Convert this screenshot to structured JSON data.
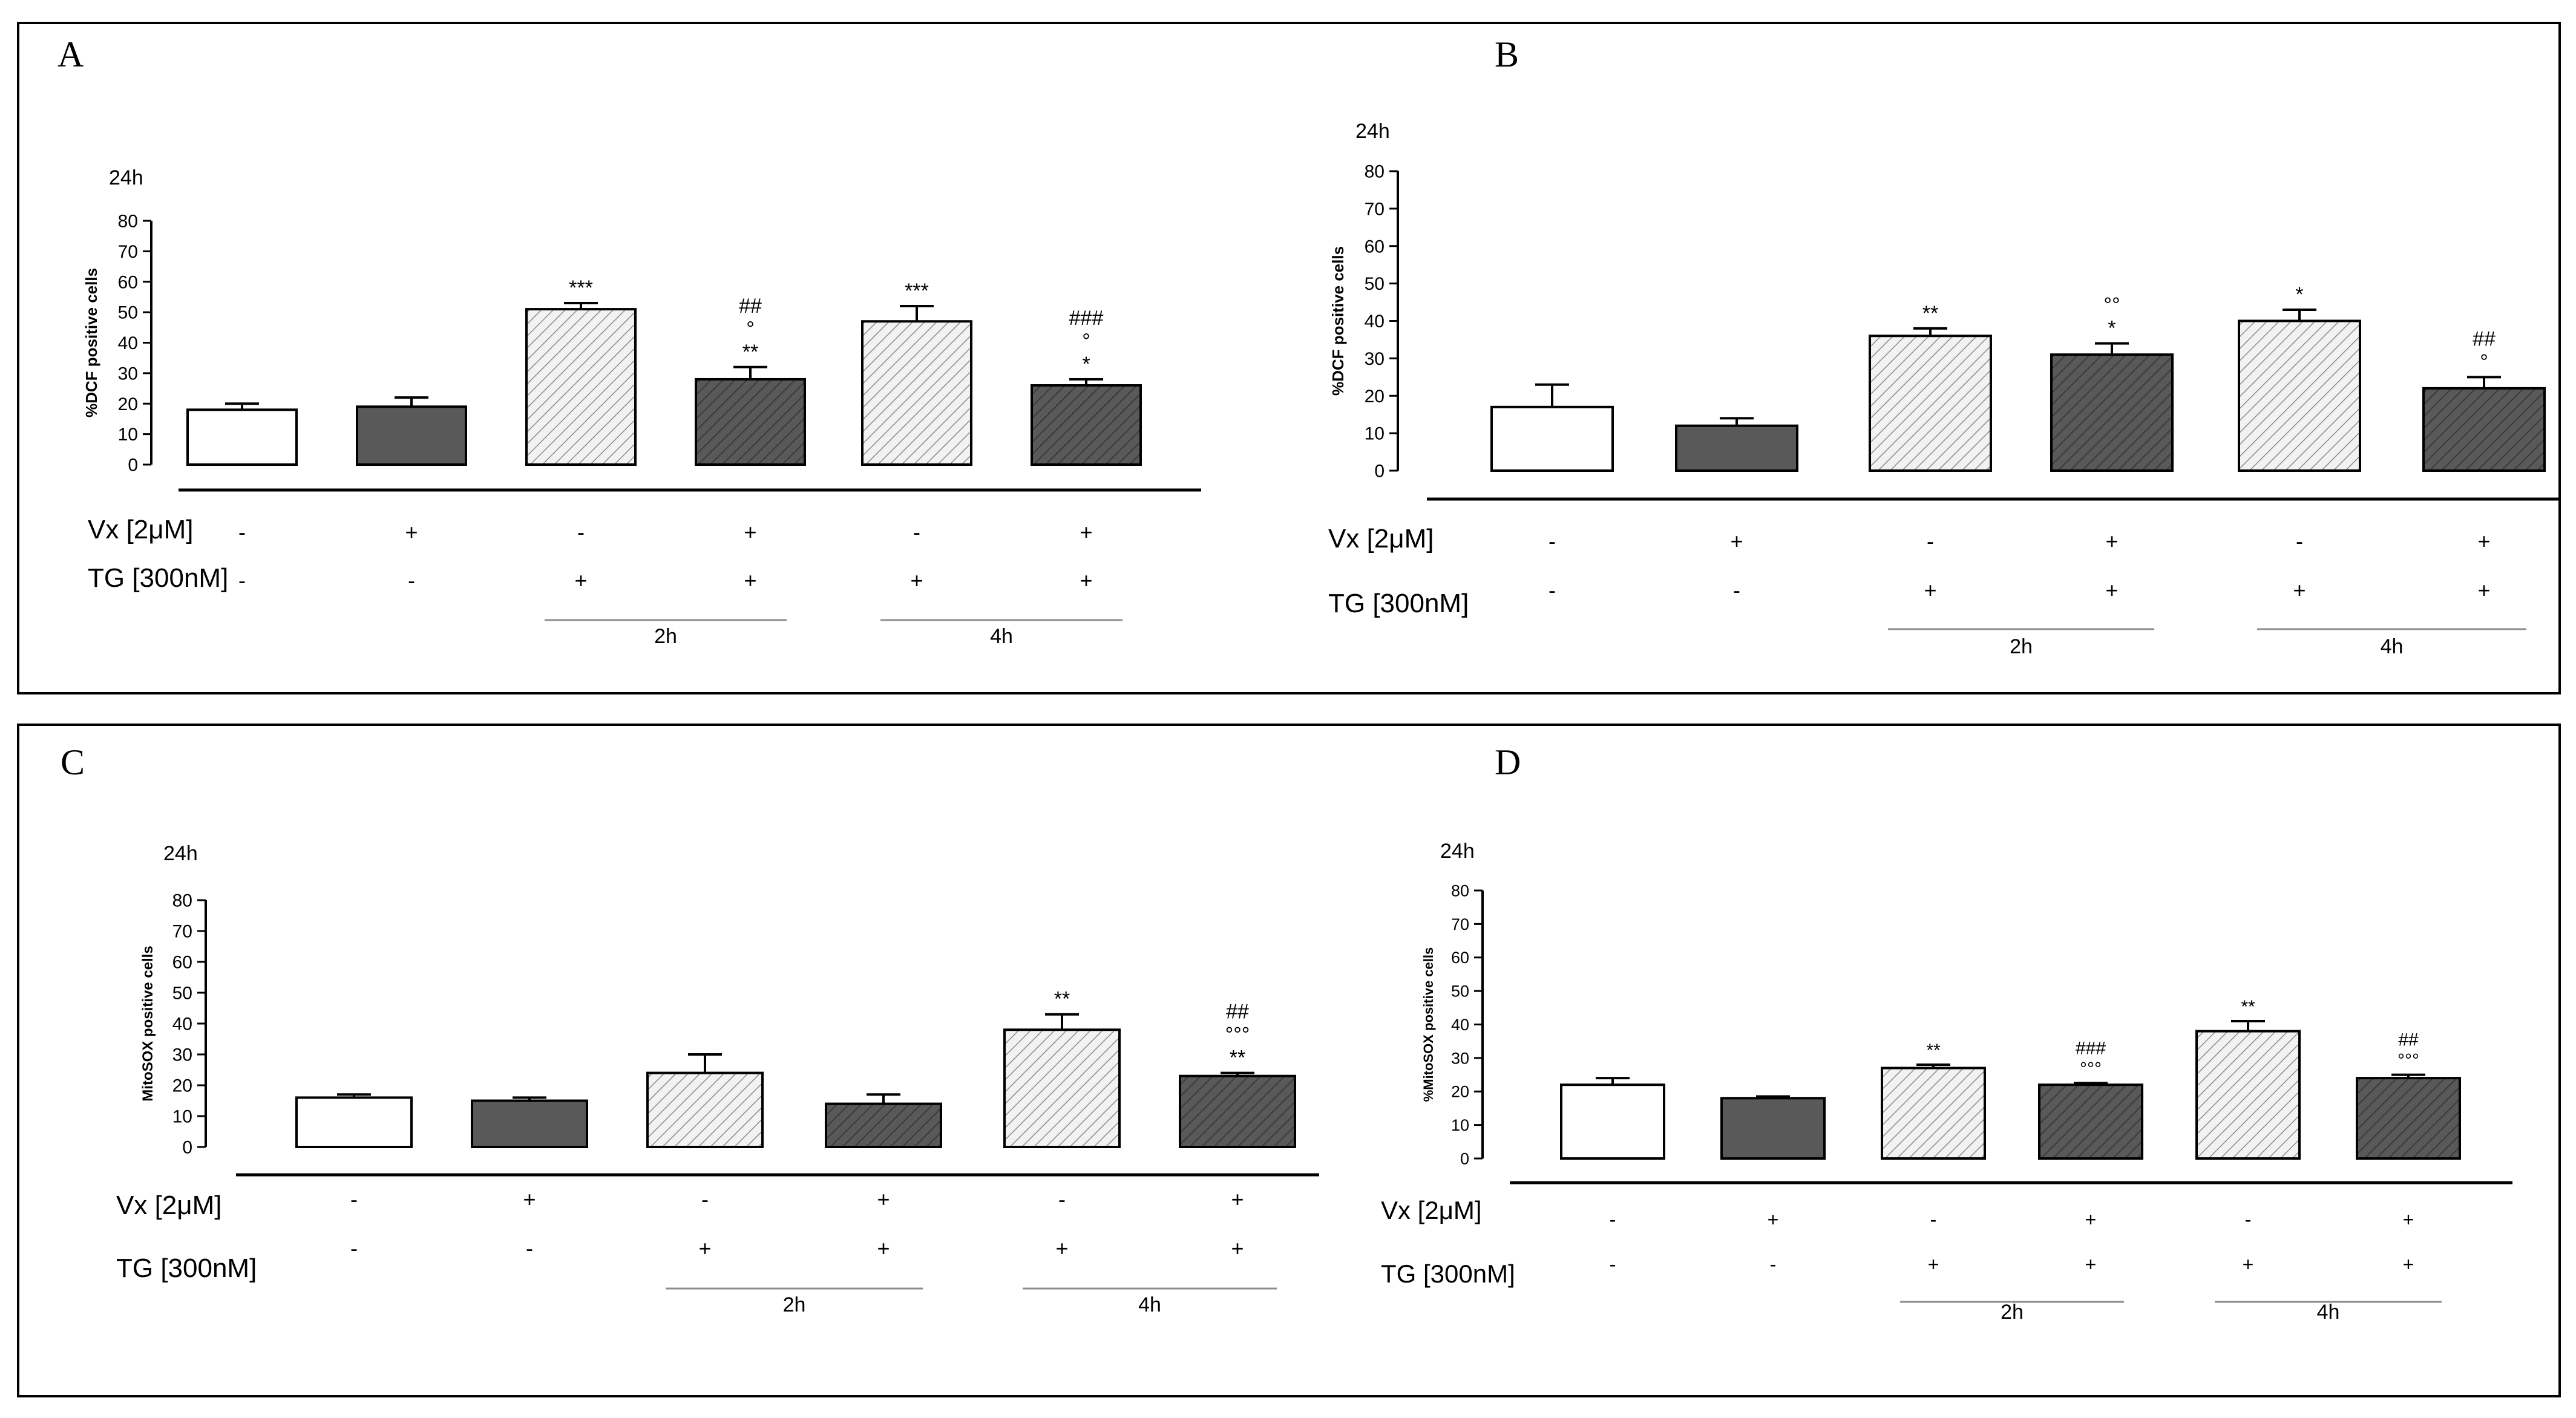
{
  "colors": {
    "frame": "#000000",
    "bar_white_fill": "#ffffff",
    "bar_dark_fill": "#595959",
    "bar_hatch_light_bg": "#f2f2f2",
    "hatch_light_stroke": "#8c8c8c",
    "hatch_dark_stroke": "#3a3a3a",
    "group_line": "#8c8c8c"
  },
  "chart_data": [
    {
      "panel": "A",
      "type": "bar",
      "time_label": "24h",
      "ylabel": "%DCF positive cells",
      "ylim": [
        0,
        80
      ],
      "yticks": [
        "0",
        "10",
        "20",
        "30",
        "40",
        "50",
        "60",
        "70",
        "80"
      ],
      "row_labels": [
        "Vx [2μM]",
        "TG [300nM]"
      ],
      "vx": [
        "-",
        "+",
        "-",
        "+",
        "-",
        "+"
      ],
      "tg": [
        "-",
        "-",
        "+",
        "+",
        "+",
        "+"
      ],
      "groups": [
        {
          "label": "2h",
          "from": 2,
          "to": 3
        },
        {
          "label": "4h",
          "from": 4,
          "to": 5
        }
      ],
      "values": [
        18,
        19,
        51,
        28,
        47,
        26
      ],
      "errors": [
        2,
        3,
        2,
        4,
        5,
        2
      ],
      "styles": [
        "white",
        "dark",
        "hatch-light",
        "hatch-dark",
        "hatch-light",
        "hatch-dark"
      ],
      "annotations": [
        [],
        [],
        [
          "***"
        ],
        [
          "**",
          "°",
          "##"
        ],
        [
          "***"
        ],
        [
          "*",
          "°",
          "###"
        ]
      ]
    },
    {
      "panel": "B",
      "type": "bar",
      "time_label": "24h",
      "ylabel": "%DCF positive cells",
      "ylim": [
        0,
        80
      ],
      "yticks": [
        "0",
        "10",
        "20",
        "30",
        "40",
        "50",
        "60",
        "70",
        "80"
      ],
      "row_labels": [
        "Vx [2μM]",
        "TG [300nM]"
      ],
      "vx": [
        "-",
        "+",
        "-",
        "+",
        "-",
        "+"
      ],
      "tg": [
        "-",
        "-",
        "+",
        "+",
        "+",
        "+"
      ],
      "groups": [
        {
          "label": "2h",
          "from": 2,
          "to": 3
        },
        {
          "label": "4h",
          "from": 4,
          "to": 5
        }
      ],
      "values": [
        17,
        12,
        36,
        31,
        40,
        22
      ],
      "errors": [
        6,
        2,
        2,
        3,
        3,
        3
      ],
      "styles": [
        "white",
        "dark",
        "hatch-light",
        "hatch-dark",
        "hatch-light",
        "hatch-dark"
      ],
      "annotations": [
        [],
        [],
        [
          "**"
        ],
        [
          "*",
          "°°"
        ],
        [
          "*"
        ],
        [
          "°",
          "##"
        ]
      ]
    },
    {
      "panel": "C",
      "type": "bar",
      "time_label": "24h",
      "ylabel": "MitoSOX positive cells",
      "ylim": [
        0,
        80
      ],
      "yticks": [
        "0",
        "10",
        "20",
        "30",
        "40",
        "50",
        "60",
        "70",
        "80"
      ],
      "row_labels": [
        "Vx [2μM]",
        "TG [300nM]"
      ],
      "vx": [
        "-",
        "+",
        "-",
        "+",
        "-",
        "+"
      ],
      "tg": [
        "-",
        "-",
        "+",
        "+",
        "+",
        "+"
      ],
      "groups": [
        {
          "label": "2h",
          "from": 2,
          "to": 3
        },
        {
          "label": "4h",
          "from": 4,
          "to": 5
        }
      ],
      "values": [
        16,
        15,
        24,
        14,
        38,
        23
      ],
      "errors": [
        1,
        1,
        6,
        3,
        5,
        1
      ],
      "styles": [
        "white",
        "dark",
        "hatch-light",
        "hatch-dark",
        "hatch-light",
        "hatch-dark"
      ],
      "annotations": [
        [],
        [],
        [],
        [],
        [
          "**"
        ],
        [
          "**",
          "°°°",
          "##"
        ]
      ]
    },
    {
      "panel": "D",
      "type": "bar",
      "time_label": "24h",
      "ylabel": "%MitoSOX positive cells",
      "ylim": [
        0,
        80
      ],
      "yticks": [
        "0",
        "10",
        "20",
        "30",
        "40",
        "50",
        "60",
        "70",
        "80"
      ],
      "row_labels": [
        "Vx [2μM]",
        "TG [300nM]"
      ],
      "vx": [
        "-",
        "+",
        "-",
        "+",
        "-",
        "+"
      ],
      "tg": [
        "-",
        "-",
        "+",
        "+",
        "+",
        "+"
      ],
      "groups": [
        {
          "label": "2h",
          "from": 2,
          "to": 3
        },
        {
          "label": "4h",
          "from": 4,
          "to": 5
        }
      ],
      "values": [
        22,
        18,
        27,
        22,
        38,
        24
      ],
      "errors": [
        2,
        0.5,
        1,
        0.5,
        3,
        1
      ],
      "styles": [
        "white",
        "dark",
        "hatch-light",
        "hatch-dark",
        "hatch-light",
        "hatch-dark"
      ],
      "annotations": [
        [],
        [],
        [
          "**"
        ],
        [
          "°°°",
          "###"
        ],
        [
          "**"
        ],
        [
          "°°°",
          "##"
        ]
      ]
    }
  ]
}
